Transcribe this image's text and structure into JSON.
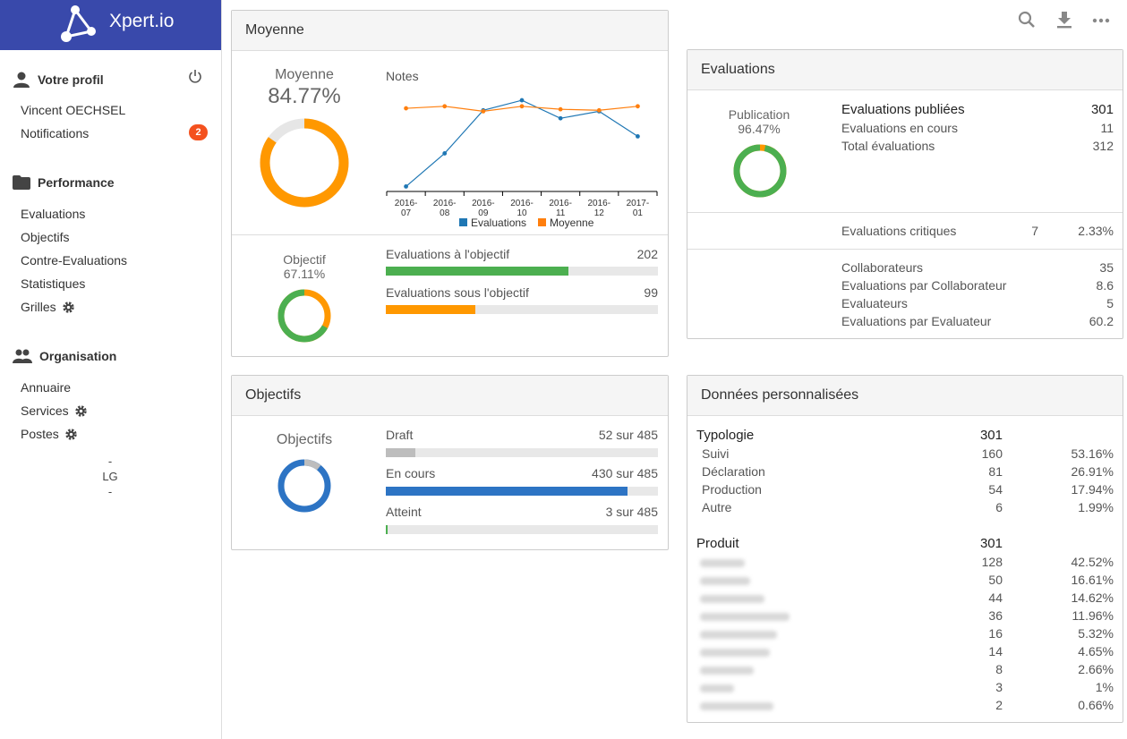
{
  "app": {
    "name": "Xpert.io"
  },
  "sidebar": {
    "profile": {
      "title": "Votre profil",
      "user": "Vincent OECHSEL",
      "notifications_label": "Notifications",
      "notifications_count": "2"
    },
    "performance": {
      "title": "Performance",
      "items": [
        "Evaluations",
        "Objectifs",
        "Contre-Evaluations",
        "Statistiques",
        "Grilles"
      ]
    },
    "organisation": {
      "title": "Organisation",
      "items": [
        "Annuaire",
        "Services",
        "Postes"
      ]
    },
    "footer": {
      "dash1": "-",
      "initials": "LG",
      "dash2": "-"
    }
  },
  "moyenne_panel": {
    "title": "Moyenne",
    "donut_label": "Moyenne",
    "donut_value": "84.77%",
    "donut_fraction": 0.8477,
    "chart_title": "Notes",
    "objectif_label": "Objectif",
    "objectif_value": "67.11%",
    "objectif_fraction": 0.6711,
    "bars": [
      {
        "label": "Evaluations à l'objectif",
        "value": "202",
        "fraction": 0.6711,
        "color": "#4caf50"
      },
      {
        "label": "Evaluations sous l'objectif",
        "value": "99",
        "fraction": 0.3289,
        "color": "#ff9800"
      }
    ]
  },
  "chart_data": {
    "type": "line",
    "title": "Notes",
    "categories": [
      "2016-07",
      "2016-08",
      "2016-09",
      "2016-10",
      "2016-11",
      "2016-12",
      "2017-01"
    ],
    "series": [
      {
        "name": "Evaluations",
        "color": "#1f77b4",
        "values": [
          5,
          38,
          81,
          91,
          73,
          80,
          55
        ]
      },
      {
        "name": "Moyenne",
        "color": "#ff7f0e",
        "values": [
          83,
          85,
          80,
          85,
          82,
          81,
          85
        ]
      }
    ],
    "ylim": [
      0,
      100
    ],
    "legend": "bottom"
  },
  "objectifs_panel": {
    "title": "Objectifs",
    "donut_label": "Objectifs",
    "rows": [
      {
        "label": "Draft",
        "value": "52 sur 485",
        "fraction": 0.107,
        "color": "#bdbdbd"
      },
      {
        "label": "En cours",
        "value": "430 sur 485",
        "fraction": 0.887,
        "color": "#2d74c4"
      },
      {
        "label": "Atteint",
        "value": "3 sur 485",
        "fraction": 0.006,
        "color": "#4caf50"
      }
    ]
  },
  "evaluations_panel": {
    "title": "Evaluations",
    "publication_label": "Publication",
    "publication_value": "96.47%",
    "publication_fraction": 0.9647,
    "stats": [
      {
        "label": "Evaluations publiées",
        "value": "301"
      },
      {
        "label": "Evaluations en cours",
        "value": "11"
      },
      {
        "label": "Total évaluations",
        "value": "312"
      }
    ],
    "critiques": {
      "label": "Evaluations critiques",
      "count": "7",
      "pct": "2.33%"
    },
    "org_stats": [
      {
        "label": "Collaborateurs",
        "value": "35"
      },
      {
        "label": "Evaluations par Collaborateur",
        "value": "8.6"
      },
      {
        "label": "Evaluateurs",
        "value": "5"
      },
      {
        "label": "Evaluations par Evaluateur",
        "value": "60.2"
      }
    ]
  },
  "donnees_panel": {
    "title": "Données personnalisées",
    "typologie": {
      "title": "Typologie",
      "total": "301",
      "rows": [
        {
          "label": "Suivi",
          "count": "160",
          "pct": "53.16%"
        },
        {
          "label": "Déclaration",
          "count": "81",
          "pct": "26.91%"
        },
        {
          "label": "Production",
          "count": "54",
          "pct": "17.94%"
        },
        {
          "label": "Autre",
          "count": "6",
          "pct": "1.99%"
        }
      ]
    },
    "produit": {
      "title": "Produit",
      "total": "301",
      "rows": [
        {
          "count": "128",
          "pct": "42.52%"
        },
        {
          "count": "50",
          "pct": "16.61%"
        },
        {
          "count": "44",
          "pct": "14.62%"
        },
        {
          "count": "36",
          "pct": "11.96%"
        },
        {
          "count": "16",
          "pct": "5.32%"
        },
        {
          "count": "14",
          "pct": "4.65%"
        },
        {
          "count": "8",
          "pct": "2.66%"
        },
        {
          "count": "3",
          "pct": "1%"
        },
        {
          "count": "2",
          "pct": "0.66%"
        }
      ]
    }
  },
  "toolbar": {
    "icons": [
      "search-icon",
      "download-icon",
      "more-icon"
    ]
  }
}
